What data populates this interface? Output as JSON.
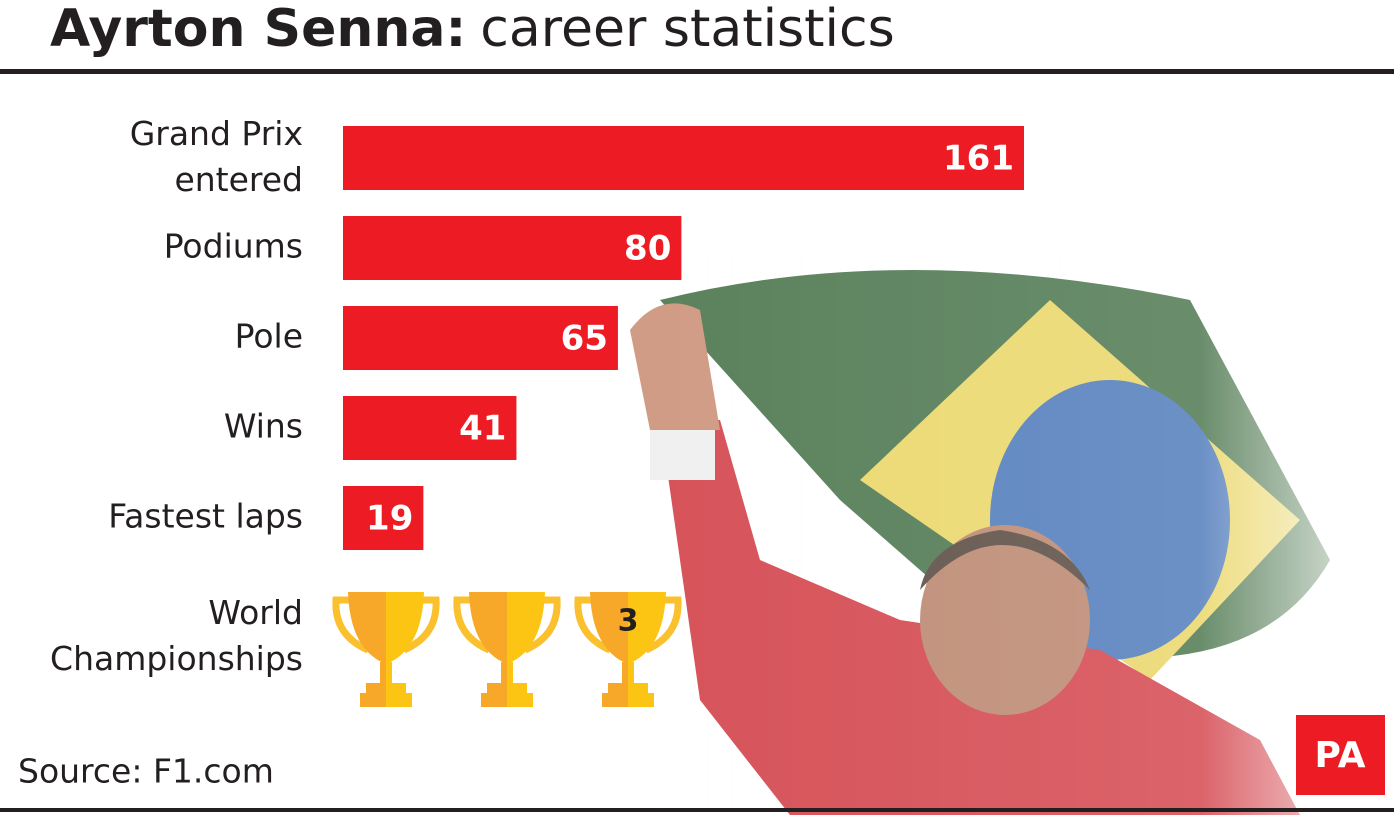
{
  "chart_data": {
    "type": "bar",
    "orientation": "horizontal",
    "title": "Ayrton Senna:",
    "subtitle": "career statistics",
    "categories": [
      "Grand Prix\nentered",
      "Podiums",
      "Pole",
      "Wins",
      "Fastest laps"
    ],
    "values": [
      161,
      80,
      65,
      41,
      19
    ],
    "color": "#ed1c24",
    "championships": {
      "label": "World\nChampionships",
      "value": 3,
      "color": "#fbc02d"
    },
    "source": "Source: F1.com",
    "logo": "PA"
  }
}
